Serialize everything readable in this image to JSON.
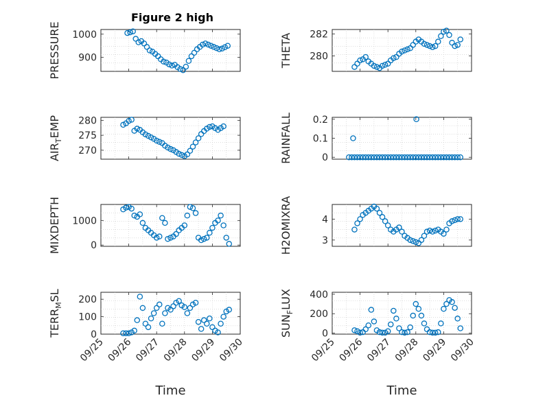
{
  "figure_title": "Figure 2 high",
  "marker_color": "#0072BD",
  "chart_data": [
    {
      "type": "scatter",
      "title": "Figure 2 high",
      "ylabel": "PRESSURE",
      "xlabel": "",
      "xlim": [
        0,
        5
      ],
      "ylim": [
        840,
        1020
      ],
      "yticks": [
        900,
        1000
      ],
      "ytick_labels": [
        "900",
        "1000"
      ],
      "x": [
        0.95,
        1.05,
        1.15,
        1.25,
        1.35,
        1.45,
        1.55,
        1.65,
        1.75,
        1.85,
        1.95,
        2.05,
        2.15,
        2.25,
        2.35,
        2.45,
        2.55,
        2.65,
        2.75,
        2.85,
        2.95,
        3.05,
        3.15,
        3.25,
        3.35,
        3.45,
        3.55,
        3.65,
        3.75,
        3.85,
        3.95,
        4.05,
        4.15,
        4.25,
        4.35,
        4.45,
        4.55
      ],
      "y": [
        1005,
        1008,
        1012,
        980,
        965,
        970,
        960,
        945,
        930,
        925,
        915,
        905,
        892,
        882,
        878,
        870,
        865,
        868,
        858,
        850,
        845,
        860,
        885,
        905,
        920,
        935,
        945,
        955,
        960,
        955,
        950,
        945,
        940,
        935,
        938,
        944,
        950
      ]
    },
    {
      "type": "scatter",
      "title": "",
      "ylabel": "THETA",
      "xlabel": "",
      "xlim": [
        0,
        5
      ],
      "ylim": [
        278.6,
        282.4
      ],
      "yticks": [
        280,
        282
      ],
      "ytick_labels": [
        "280",
        "282"
      ],
      "x": [
        0.8,
        0.9,
        1.0,
        1.1,
        1.2,
        1.3,
        1.4,
        1.5,
        1.6,
        1.7,
        1.8,
        1.9,
        2.0,
        2.1,
        2.2,
        2.3,
        2.4,
        2.5,
        2.6,
        2.7,
        2.8,
        2.9,
        3.0,
        3.1,
        3.2,
        3.3,
        3.4,
        3.5,
        3.6,
        3.7,
        3.8,
        3.9,
        4.0,
        4.1,
        4.2,
        4.3,
        4.4,
        4.5,
        4.6
      ],
      "y": [
        279.0,
        279.3,
        279.6,
        279.7,
        279.9,
        279.5,
        279.3,
        279.1,
        279.0,
        278.9,
        279.1,
        279.2,
        279.3,
        279.6,
        279.8,
        279.9,
        280.2,
        280.4,
        280.5,
        280.6,
        280.7,
        281.0,
        281.3,
        281.5,
        281.3,
        281.1,
        281.0,
        280.9,
        280.8,
        280.9,
        281.3,
        281.8,
        282.2,
        282.3,
        281.9,
        281.2,
        280.9,
        281.0,
        281.5
      ]
    },
    {
      "type": "scatter",
      "title": "",
      "ylabel": "AIR_TEMP",
      "xlabel": "",
      "xlim": [
        0,
        5
      ],
      "ylim": [
        267,
        281
      ],
      "yticks": [
        270,
        275,
        280
      ],
      "ytick_labels": [
        "270",
        "275",
        "280"
      ],
      "x": [
        0.8,
        0.9,
        1.0,
        1.1,
        1.2,
        1.3,
        1.4,
        1.5,
        1.6,
        1.7,
        1.8,
        1.9,
        2.0,
        2.1,
        2.2,
        2.3,
        2.4,
        2.5,
        2.6,
        2.7,
        2.8,
        2.9,
        3.0,
        3.1,
        3.2,
        3.3,
        3.4,
        3.5,
        3.6,
        3.7,
        3.8,
        3.9,
        4.0,
        4.1,
        4.2,
        4.3,
        4.4
      ],
      "y": [
        278.5,
        279.0,
        279.8,
        280.2,
        276.5,
        277.2,
        276.8,
        276.0,
        275.3,
        274.8,
        274.3,
        273.8,
        273.2,
        272.8,
        272.4,
        271.5,
        270.9,
        270.4,
        270.0,
        269.4,
        268.8,
        268.4,
        268.0,
        268.6,
        269.8,
        271.2,
        272.6,
        274.0,
        275.4,
        276.4,
        277.2,
        277.8,
        278.0,
        277.4,
        276.8,
        277.4,
        278.0
      ]
    },
    {
      "type": "scatter",
      "title": "",
      "ylabel": "RAINFALL",
      "xlabel": "",
      "xlim": [
        0,
        5
      ],
      "ylim": [
        -0.01,
        0.21
      ],
      "yticks": [
        0,
        0.1,
        0.2
      ],
      "ytick_labels": [
        "0",
        "0.1",
        "0.2"
      ],
      "x": [
        0.6,
        0.7,
        0.8,
        0.9,
        1.0,
        1.1,
        1.2,
        1.3,
        1.4,
        1.5,
        1.6,
        1.7,
        1.8,
        1.9,
        2.0,
        2.1,
        2.2,
        2.3,
        2.4,
        2.5,
        2.6,
        2.7,
        2.8,
        2.9,
        3.0,
        3.1,
        3.2,
        3.3,
        3.4,
        3.5,
        3.6,
        3.7,
        3.8,
        3.9,
        4.0,
        4.1,
        4.2,
        4.3,
        4.4,
        4.5,
        4.6,
        0.75,
        3.02
      ],
      "y": [
        0,
        0,
        0,
        0,
        0,
        0,
        0,
        0,
        0,
        0,
        0,
        0,
        0,
        0,
        0,
        0,
        0,
        0,
        0,
        0,
        0,
        0,
        0,
        0,
        0,
        0,
        0,
        0,
        0,
        0,
        0,
        0,
        0,
        0,
        0,
        0,
        0,
        0,
        0,
        0,
        0,
        0.1,
        0.2
      ]
    },
    {
      "type": "scatter",
      "title": "",
      "ylabel": "MIXDEPTH",
      "xlabel": "",
      "xlim": [
        0,
        5
      ],
      "ylim": [
        -50,
        1650
      ],
      "yticks": [
        0,
        1000
      ],
      "ytick_labels": [
        "0",
        "1000"
      ],
      "x": [
        0.8,
        0.9,
        1.0,
        1.1,
        1.2,
        1.3,
        1.4,
        1.5,
        1.6,
        1.7,
        1.8,
        1.9,
        2.0,
        2.1,
        2.2,
        2.3,
        2.4,
        2.5,
        2.6,
        2.7,
        2.8,
        2.9,
        3.0,
        3.1,
        3.2,
        3.3,
        3.4,
        3.5,
        3.6,
        3.7,
        3.8,
        3.9,
        4.0,
        4.1,
        4.2,
        4.3,
        4.4,
        4.5,
        4.6
      ],
      "y": [
        1450,
        1520,
        1550,
        1480,
        1200,
        1150,
        1250,
        900,
        700,
        600,
        500,
        400,
        300,
        350,
        1100,
        900,
        250,
        300,
        350,
        450,
        600,
        700,
        800,
        1200,
        1550,
        1500,
        1300,
        300,
        200,
        250,
        300,
        500,
        700,
        900,
        1000,
        1200,
        800,
        300,
        50
      ]
    },
    {
      "type": "scatter",
      "title": "",
      "ylabel": "H2OMIXRA",
      "xlabel": "",
      "xlim": [
        0,
        5
      ],
      "ylim": [
        2.7,
        4.7
      ],
      "yticks": [
        3,
        4
      ],
      "ytick_labels": [
        "3",
        "4"
      ],
      "x": [
        0.8,
        0.9,
        1.0,
        1.1,
        1.2,
        1.3,
        1.4,
        1.5,
        1.6,
        1.7,
        1.8,
        1.9,
        2.0,
        2.1,
        2.2,
        2.3,
        2.4,
        2.5,
        2.6,
        2.7,
        2.8,
        2.9,
        3.0,
        3.1,
        3.2,
        3.3,
        3.4,
        3.5,
        3.6,
        3.7,
        3.8,
        3.9,
        4.0,
        4.1,
        4.2,
        4.3,
        4.4,
        4.5,
        4.6
      ],
      "y": [
        3.5,
        3.8,
        4.0,
        4.2,
        4.3,
        4.4,
        4.5,
        4.6,
        4.5,
        4.3,
        4.1,
        3.9,
        3.7,
        3.5,
        3.4,
        3.5,
        3.6,
        3.4,
        3.2,
        3.1,
        3.0,
        2.95,
        2.9,
        2.85,
        3.0,
        3.2,
        3.4,
        3.45,
        3.4,
        3.45,
        3.5,
        3.4,
        3.3,
        3.5,
        3.8,
        3.9,
        3.95,
        4.0,
        4.0
      ]
    },
    {
      "type": "scatter",
      "title": "",
      "ylabel": "TERR_MSL",
      "xlabel": "Time",
      "xlim": [
        0,
        5
      ],
      "ylim": [
        0,
        240
      ],
      "yticks": [
        0,
        100,
        200
      ],
      "ytick_labels": [
        "0",
        "100",
        "200"
      ],
      "xticks": [
        0,
        1,
        2,
        3,
        4,
        5
      ],
      "xtick_labels": [
        "09/25",
        "09/26",
        "09/27",
        "09/28",
        "09/29",
        "09/30"
      ],
      "x": [
        0.8,
        0.9,
        1.0,
        1.1,
        1.2,
        1.3,
        1.4,
        1.5,
        1.6,
        1.7,
        1.8,
        1.9,
        2.0,
        2.1,
        2.2,
        2.3,
        2.4,
        2.5,
        2.6,
        2.7,
        2.8,
        2.9,
        3.0,
        3.1,
        3.2,
        3.3,
        3.4,
        3.5,
        3.6,
        3.7,
        3.8,
        3.9,
        4.0,
        4.1,
        4.2,
        4.3,
        4.4,
        4.5,
        4.6
      ],
      "y": [
        5,
        5,
        5,
        10,
        20,
        80,
        215,
        150,
        60,
        40,
        90,
        120,
        150,
        170,
        60,
        120,
        150,
        140,
        160,
        180,
        190,
        165,
        155,
        120,
        150,
        170,
        180,
        70,
        30,
        80,
        60,
        90,
        40,
        20,
        10,
        60,
        100,
        130,
        140
      ]
    },
    {
      "type": "scatter",
      "title": "",
      "ylabel": "SUN_FLUX",
      "xlabel": "Time",
      "xlim": [
        0,
        5
      ],
      "ylim": [
        -10,
        420
      ],
      "yticks": [
        0,
        200,
        400
      ],
      "ytick_labels": [
        "0",
        "200",
        "400"
      ],
      "xticks": [
        0,
        1,
        2,
        3,
        4,
        5
      ],
      "xtick_labels": [
        "09/25",
        "09/26",
        "09/27",
        "09/28",
        "09/29",
        "09/30"
      ],
      "x": [
        0.8,
        0.9,
        1.0,
        1.1,
        1.2,
        1.3,
        1.4,
        1.5,
        1.6,
        1.7,
        1.8,
        1.9,
        2.0,
        2.1,
        2.2,
        2.3,
        2.4,
        2.5,
        2.6,
        2.7,
        2.8,
        2.9,
        3.0,
        3.1,
        3.2,
        3.3,
        3.4,
        3.5,
        3.6,
        3.7,
        3.8,
        3.9,
        4.0,
        4.1,
        4.2,
        4.3,
        4.4,
        4.5,
        4.6
      ],
      "y": [
        30,
        20,
        5,
        10,
        40,
        80,
        240,
        120,
        30,
        10,
        5,
        5,
        20,
        90,
        230,
        150,
        50,
        10,
        5,
        10,
        60,
        180,
        300,
        250,
        180,
        100,
        40,
        10,
        5,
        5,
        10,
        100,
        250,
        300,
        340,
        320,
        260,
        150,
        50
      ]
    }
  ]
}
